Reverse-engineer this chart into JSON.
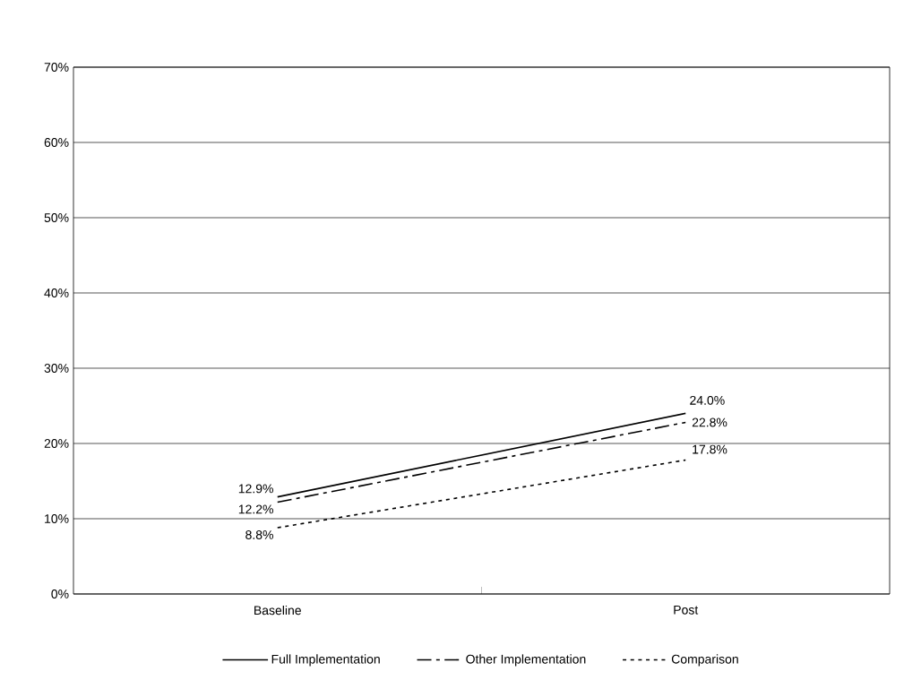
{
  "chart_data": {
    "type": "line",
    "categories": [
      "Baseline",
      "Post"
    ],
    "series": [
      {
        "name": "Full Implementation",
        "color": "#000000",
        "line_style": "solid",
        "values": [
          12.9,
          24.0
        ],
        "value_labels": [
          "12.9%",
          "24.0%"
        ]
      },
      {
        "name": "Other Implementation",
        "color": "#000000",
        "line_style": "dashed",
        "values": [
          12.2,
          22.8
        ],
        "value_labels": [
          "12.2%",
          "22.8%"
        ]
      },
      {
        "name": "Comparison",
        "color": "#000000",
        "line_style": "dotted",
        "values": [
          8.8,
          17.8
        ],
        "value_labels": [
          "8.8%",
          "17.8%"
        ]
      }
    ],
    "ylim": [
      0,
      70
    ],
    "yticks": [
      {
        "value": 0,
        "label": "0%"
      },
      {
        "value": 10,
        "label": "10%"
      },
      {
        "value": 20,
        "label": "20%"
      },
      {
        "value": 30,
        "label": "30%"
      },
      {
        "value": 40,
        "label": "40%"
      },
      {
        "value": 50,
        "label": "50%"
      },
      {
        "value": 60,
        "label": "60%"
      },
      {
        "value": 70,
        "label": "70%"
      }
    ],
    "grid": "y",
    "legend": "bottom",
    "marker": "none"
  }
}
